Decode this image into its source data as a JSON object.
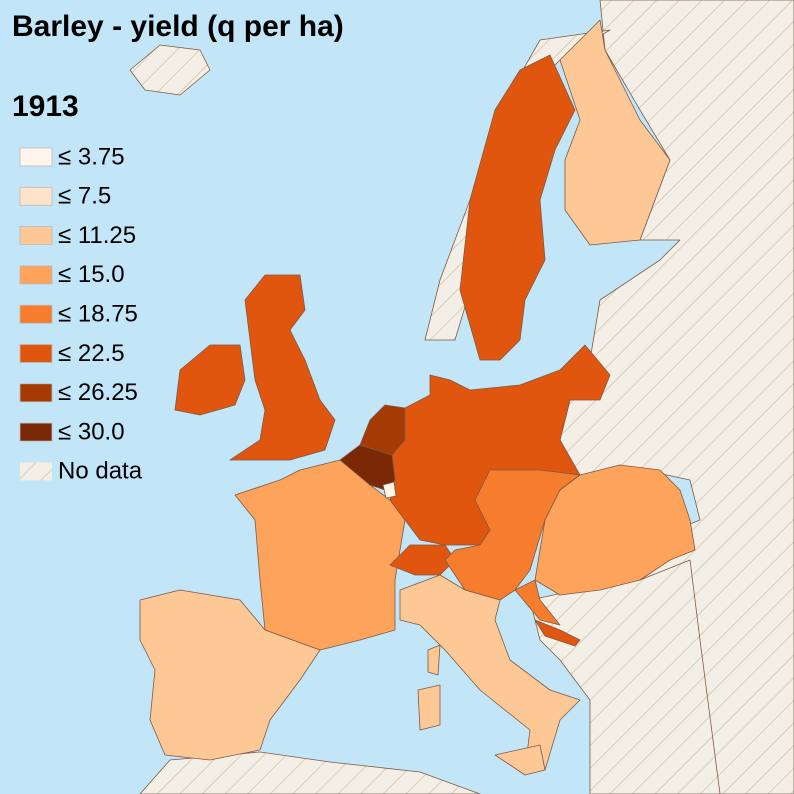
{
  "title": "Barley - yield (q per ha)",
  "year": "1913",
  "legend": {
    "items": [
      {
        "label": "≤ 3.75",
        "color": "#fff5eb"
      },
      {
        "label": "≤ 7.5",
        "color": "#fee3c8"
      },
      {
        "label": "≤ 11.25",
        "color": "#fdc895"
      },
      {
        "label": "≤ 15.0",
        "color": "#fda35c"
      },
      {
        "label": "≤ 18.75",
        "color": "#f67d2e"
      },
      {
        "label": "≤ 22.5",
        "color": "#e1560e"
      },
      {
        "label": "≤ 26.25",
        "color": "#a63a05"
      },
      {
        "label": "≤ 30.0",
        "color": "#7a2805"
      }
    ],
    "no_data": {
      "label": "No data"
    }
  }
}
